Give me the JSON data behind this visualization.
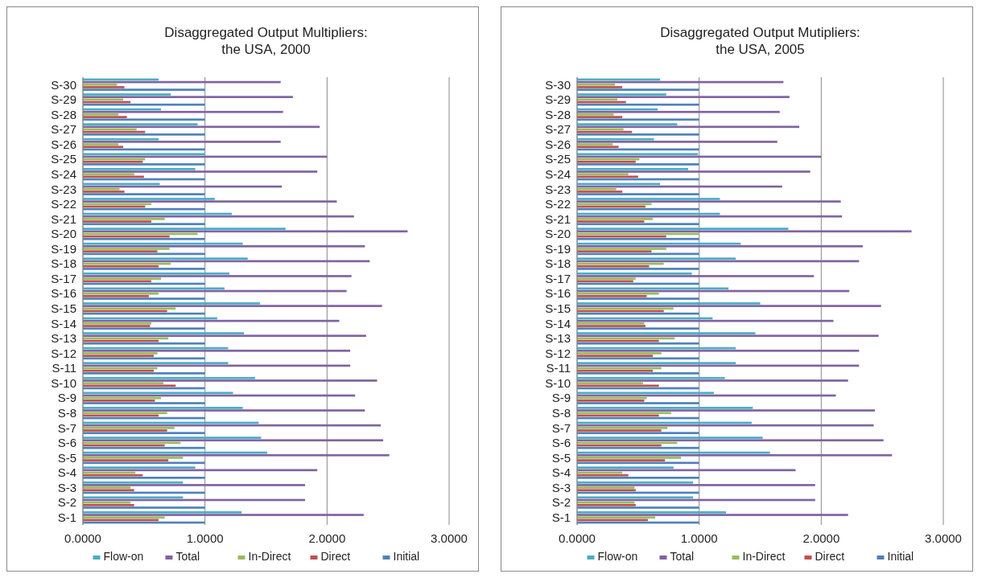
{
  "chart_data": [
    {
      "type": "bar",
      "orientation": "horizontal",
      "title": "Disaggregated Output Multipliers:\nthe USA, 2000",
      "categories": [
        "S-30",
        "S-29",
        "S-28",
        "S-27",
        "S-26",
        "S-25",
        "S-24",
        "S-23",
        "S-22",
        "S-21",
        "S-20",
        "S-19",
        "S-18",
        "S-17",
        "S-16",
        "S-15",
        "S-14",
        "S-13",
        "S-12",
        "S-11",
        "S-10",
        "S-9",
        "S-8",
        "S-7",
        "S-6",
        "S-5",
        "S-4",
        "S-3",
        "S-2",
        "S-1"
      ],
      "series": [
        {
          "name": "Flow-on",
          "color": "#4bacc6",
          "values": [
            0.62,
            0.72,
            0.64,
            0.94,
            0.62,
            1.0,
            0.92,
            0.63,
            1.08,
            1.22,
            1.66,
            1.31,
            1.35,
            1.2,
            1.16,
            1.45,
            1.1,
            1.32,
            1.19,
            1.19,
            1.41,
            1.23,
            1.31,
            1.44,
            1.46,
            1.51,
            0.92,
            0.82,
            0.82,
            1.3
          ]
        },
        {
          "name": "Total",
          "color": "#8064a2",
          "values": [
            1.62,
            1.72,
            1.64,
            1.94,
            1.62,
            2.0,
            1.92,
            1.63,
            2.08,
            2.22,
            2.66,
            2.31,
            2.35,
            2.2,
            2.16,
            2.45,
            2.1,
            2.32,
            2.19,
            2.19,
            2.41,
            2.23,
            2.31,
            2.44,
            2.46,
            2.51,
            1.92,
            1.82,
            1.82,
            2.3
          ]
        },
        {
          "name": "In-Direct",
          "color": "#9bbb59",
          "values": [
            0.28,
            0.33,
            0.29,
            0.44,
            0.29,
            0.51,
            0.42,
            0.3,
            0.56,
            0.67,
            0.94,
            0.71,
            0.72,
            0.64,
            0.62,
            0.76,
            0.56,
            0.7,
            0.61,
            0.61,
            0.66,
            0.64,
            0.69,
            0.75,
            0.8,
            0.82,
            0.43,
            0.39,
            0.39,
            0.67
          ]
        },
        {
          "name": "Direct",
          "color": "#c0504d",
          "values": [
            0.34,
            0.39,
            0.36,
            0.51,
            0.33,
            0.49,
            0.5,
            0.34,
            0.51,
            0.56,
            0.71,
            0.61,
            0.62,
            0.56,
            0.54,
            0.69,
            0.55,
            0.62,
            0.58,
            0.58,
            0.76,
            0.59,
            0.62,
            0.69,
            0.67,
            0.7,
            0.49,
            0.42,
            0.42,
            0.62
          ]
        },
        {
          "name": "Initial",
          "color": "#4f81bd",
          "values": [
            1,
            1,
            1,
            1,
            1,
            1,
            1,
            1,
            1,
            1,
            1,
            1,
            1,
            1,
            1,
            1,
            1,
            1,
            1,
            1,
            1,
            1,
            1,
            1,
            1,
            1,
            1,
            1,
            1,
            1
          ]
        }
      ],
      "xlim": [
        0,
        3
      ],
      "xticks": [
        {
          "value": 0,
          "label": "0.0000"
        },
        {
          "value": 1,
          "label": "1.0000"
        },
        {
          "value": 2,
          "label": "2.0000"
        },
        {
          "value": 3,
          "label": "3.0000"
        }
      ],
      "grid": "x",
      "legend": "bottom"
    },
    {
      "type": "bar",
      "orientation": "horizontal",
      "title": "Disaggregated Output Mutipliers:\nthe USA, 2005",
      "categories": [
        "S-30",
        "S-29",
        "S-28",
        "S-27",
        "S-26",
        "S-25",
        "S-24",
        "S-23",
        "S-22",
        "S-21",
        "S-20",
        "S-19",
        "S-18",
        "S-17",
        "S-16",
        "S-15",
        "S-14",
        "S-13",
        "S-12",
        "S-11",
        "S-10",
        "S-9",
        "S-8",
        "S-7",
        "S-6",
        "S-5",
        "S-4",
        "S-3",
        "S-2",
        "S-1"
      ],
      "series": [
        {
          "name": "Flow-on",
          "color": "#4bacc6",
          "values": [
            0.68,
            0.73,
            0.66,
            0.82,
            0.63,
            0.99,
            0.91,
            0.68,
            1.17,
            1.17,
            1.73,
            1.34,
            1.3,
            0.94,
            1.24,
            1.5,
            1.11,
            1.46,
            1.3,
            1.3,
            1.21,
            1.12,
            1.44,
            1.43,
            1.52,
            1.58,
            0.79,
            0.95,
            0.95,
            1.22
          ]
        },
        {
          "name": "Total",
          "color": "#8064a2",
          "values": [
            1.69,
            1.74,
            1.66,
            1.82,
            1.64,
            2.0,
            1.91,
            1.68,
            2.16,
            2.17,
            2.74,
            2.34,
            2.31,
            1.94,
            2.23,
            2.49,
            2.1,
            2.47,
            2.31,
            2.31,
            2.22,
            2.12,
            2.44,
            2.43,
            2.51,
            2.58,
            1.79,
            1.95,
            1.95,
            2.22
          ]
        },
        {
          "name": "In-Direct",
          "color": "#9bbb59",
          "values": [
            0.31,
            0.33,
            0.3,
            0.38,
            0.29,
            0.51,
            0.42,
            0.32,
            0.61,
            0.62,
            1.0,
            0.73,
            0.71,
            0.48,
            0.67,
            0.79,
            0.55,
            0.8,
            0.69,
            0.69,
            0.54,
            0.57,
            0.77,
            0.74,
            0.82,
            0.85,
            0.37,
            0.47,
            0.47,
            0.64
          ]
        },
        {
          "name": "Direct",
          "color": "#c0504d",
          "values": [
            0.37,
            0.4,
            0.37,
            0.45,
            0.34,
            0.48,
            0.5,
            0.37,
            0.56,
            0.55,
            0.73,
            0.61,
            0.59,
            0.46,
            0.57,
            0.71,
            0.56,
            0.67,
            0.62,
            0.62,
            0.67,
            0.55,
            0.67,
            0.69,
            0.69,
            0.72,
            0.42,
            0.48,
            0.48,
            0.58
          ]
        },
        {
          "name": "Initial",
          "color": "#4f81bd",
          "values": [
            1,
            1,
            1,
            1,
            1,
            1,
            1,
            1,
            1,
            1,
            1,
            1,
            1,
            1,
            1,
            1,
            1,
            1,
            1,
            1,
            1,
            1,
            1,
            1,
            1,
            1,
            1,
            1,
            1,
            1
          ]
        }
      ],
      "xlim": [
        0,
        3
      ],
      "xticks": [
        {
          "value": 0,
          "label": "0.0000"
        },
        {
          "value": 1,
          "label": "1.0000"
        },
        {
          "value": 2,
          "label": "2.0000"
        },
        {
          "value": 3,
          "label": "3.0000"
        }
      ],
      "grid": "x",
      "legend": "bottom"
    }
  ]
}
